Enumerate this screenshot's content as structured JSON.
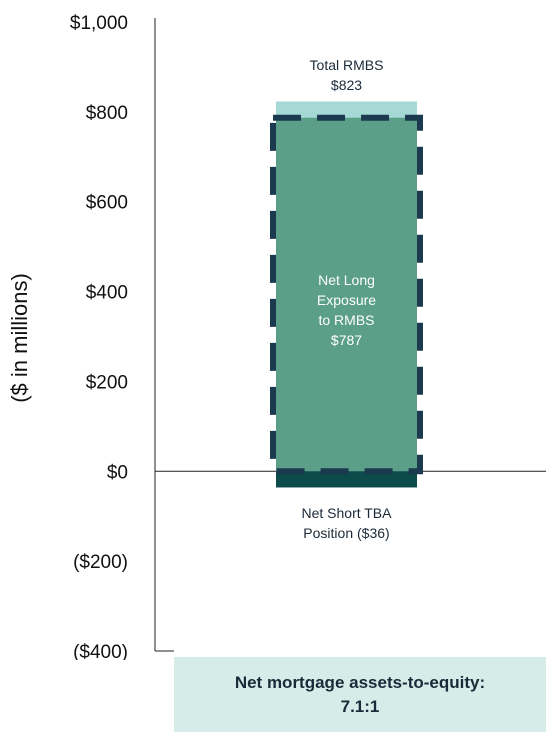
{
  "chart_data": {
    "type": "bar",
    "title": "",
    "xlabel": "",
    "ylabel": "($ in millions)",
    "ylim": [
      -400,
      1000
    ],
    "yticks": [
      {
        "value": 1000,
        "label": "$1,000"
      },
      {
        "value": 800,
        "label": "$800"
      },
      {
        "value": 600,
        "label": "$600"
      },
      {
        "value": 400,
        "label": "$400"
      },
      {
        "value": 200,
        "label": "$200"
      },
      {
        "value": 0,
        "label": "$0"
      },
      {
        "value": -200,
        "label": "($200)"
      },
      {
        "value": -400,
        "label": "($400)"
      }
    ],
    "bars": [
      {
        "label": [
          "Total RMBS",
          "$823"
        ],
        "value": 823,
        "color": "#a6d8d6"
      },
      {
        "label": [
          "Net Long",
          "Exposure",
          "to RMBS",
          "$787"
        ],
        "value": 787,
        "color": "#5b9f88"
      },
      {
        "label": [
          "Net Short TBA",
          "Position ($36)"
        ],
        "value": -36,
        "color": "#0d4a4a"
      }
    ],
    "outline_color": "#1b3a4f",
    "grid": false
  },
  "footer": {
    "line1": "Net mortgage assets-to-equity:",
    "line2": "7.1:1"
  }
}
